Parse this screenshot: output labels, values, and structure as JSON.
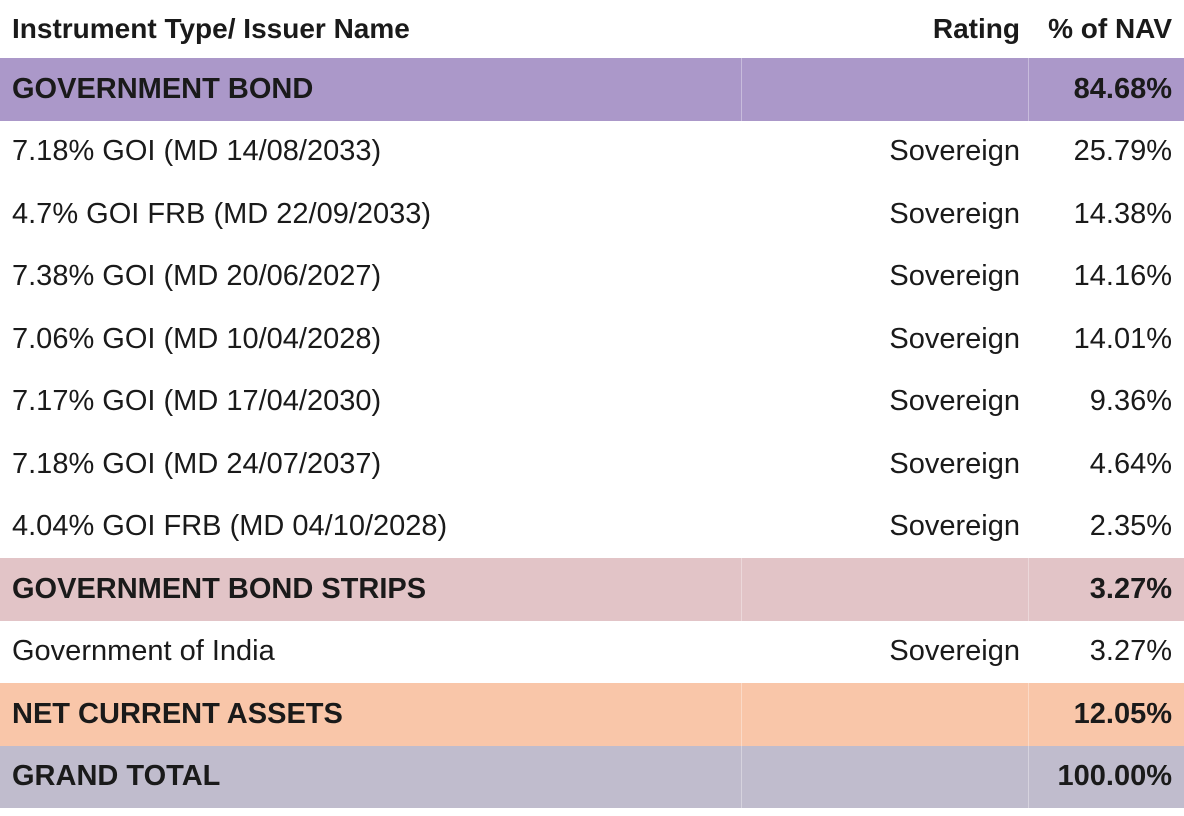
{
  "header": {
    "name": "Instrument Type/ Issuer Name",
    "rating": "Rating",
    "nav": "% of NAV"
  },
  "government_bond": {
    "name": "GOVERNMENT BOND",
    "nav": "84.68%",
    "color": "#ab98c9",
    "items": [
      {
        "name": "7.18% GOI (MD 14/08/2033)",
        "rating": "Sovereign",
        "nav": "25.79%"
      },
      {
        "name": "4.7% GOI FRB (MD 22/09/2033)",
        "rating": "Sovereign",
        "nav": "14.38%"
      },
      {
        "name": "7.38% GOI (MD 20/06/2027)",
        "rating": "Sovereign",
        "nav": "14.16%"
      },
      {
        "name": "7.06% GOI (MD 10/04/2028)",
        "rating": "Sovereign",
        "nav": "14.01%"
      },
      {
        "name": "7.17% GOI (MD 17/04/2030)",
        "rating": "Sovereign",
        "nav": "9.36%"
      },
      {
        "name": "7.18% GOI (MD 24/07/2037)",
        "rating": "Sovereign",
        "nav": "4.64%"
      },
      {
        "name": "4.04% GOI FRB (MD 04/10/2028)",
        "rating": "Sovereign",
        "nav": "2.35%"
      }
    ]
  },
  "government_bond_strips": {
    "name": "GOVERNMENT BOND STRIPS",
    "nav": "3.27%",
    "color": "#e2c4c7",
    "items": [
      {
        "name": "Government of India",
        "rating": "Sovereign",
        "nav": "3.27%"
      }
    ]
  },
  "net_current_assets": {
    "name": "NET CURRENT ASSETS",
    "nav": "12.05%",
    "color": "#f9c6a9"
  },
  "grand_total": {
    "name": "GRAND TOTAL",
    "nav": "100.00%",
    "color": "#c0bccd"
  }
}
